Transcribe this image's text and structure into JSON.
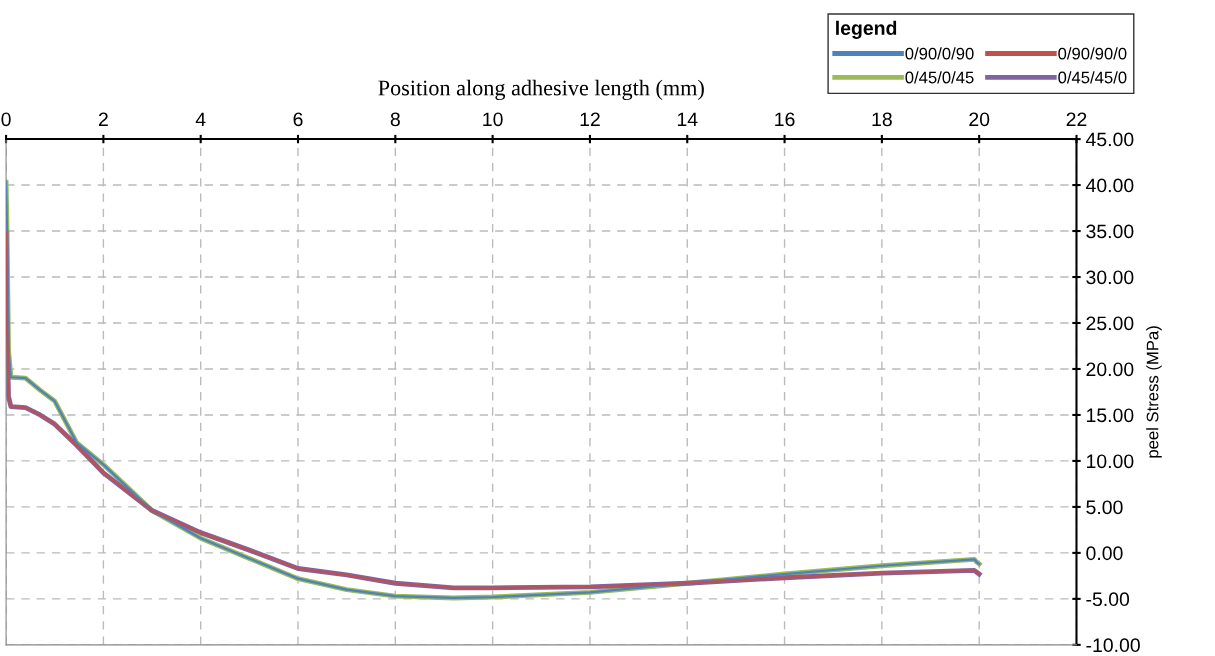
{
  "chart_data": {
    "type": "line",
    "xlabel": "Position along adhesive length (mm)",
    "ylabel": "peel Stress (MPa)",
    "legend_title": "legend",
    "xlim": [
      0,
      22
    ],
    "xticks": [
      0,
      2,
      4,
      6,
      8,
      10,
      12,
      14,
      16,
      18,
      20,
      22
    ],
    "ylim": [
      -10,
      45
    ],
    "yticks": [
      {
        "value": -10,
        "label": "-10.00"
      },
      {
        "value": -5,
        "label": "-5.00"
      },
      {
        "value": 0,
        "label": "0.00"
      },
      {
        "value": 5,
        "label": "5.00"
      },
      {
        "value": 10,
        "label": "10.00"
      },
      {
        "value": 15,
        "label": "15.00"
      },
      {
        "value": 20,
        "label": "20.00"
      },
      {
        "value": 25,
        "label": "25.00"
      },
      {
        "value": 30,
        "label": "30.00"
      },
      {
        "value": 35,
        "label": "35.00"
      },
      {
        "value": 40,
        "label": "40.00"
      },
      {
        "value": 45,
        "label": "45.00"
      }
    ],
    "grid": true,
    "legend": "top right",
    "marker": "none",
    "line_style": "solid",
    "x": [
      0,
      0.02,
      0.05,
      0.1,
      0.4,
      0.7,
      1,
      1.45,
      2,
      3,
      4,
      5,
      6,
      7,
      8,
      9.2,
      10,
      12,
      14,
      16,
      18,
      19.9,
      19.95,
      20
    ],
    "series": [
      {
        "name": "0/90/0/90",
        "color": "#4f81bd",
        "values": [
          40.3,
          35,
          22,
          19.1,
          19.0,
          17.7,
          16.5,
          12.0,
          9.6,
          4.6,
          1.6,
          -0.6,
          -2.8,
          -4.0,
          -4.7,
          -4.9,
          -4.8,
          -4.3,
          -3.3,
          -2.3,
          -1.4,
          -0.7,
          -1.0,
          -1.2
        ]
      },
      {
        "name": "0/90/90/0",
        "color": "#c0504d",
        "values": [
          34.8,
          25,
          17,
          15.9,
          15.8,
          15.0,
          14.0,
          11.7,
          8.7,
          4.6,
          2.2,
          0.3,
          -1.7,
          -2.4,
          -3.3,
          -3.8,
          -3.8,
          -3.7,
          -3.3,
          -2.7,
          -2.2,
          -1.9,
          -2.1,
          -2.3
        ]
      },
      {
        "name": "0/45/0/45",
        "color": "#9bbb59",
        "values": [
          40.3,
          35,
          22,
          19.1,
          19.0,
          17.7,
          16.5,
          12.0,
          9.6,
          4.6,
          1.6,
          -0.6,
          -2.8,
          -4.0,
          -4.7,
          -4.9,
          -4.8,
          -4.3,
          -3.3,
          -2.3,
          -1.4,
          -0.7,
          -1.0,
          -1.2
        ]
      },
      {
        "name": "0/45/45/0",
        "color": "#8064a2",
        "values": [
          34.8,
          25,
          17,
          15.9,
          15.8,
          15.0,
          14.0,
          11.7,
          8.7,
          4.6,
          2.2,
          0.3,
          -1.7,
          -2.4,
          -3.3,
          -3.8,
          -3.8,
          -3.7,
          -3.3,
          -2.7,
          -2.2,
          -1.9,
          -2.1,
          -2.3
        ]
      }
    ]
  }
}
